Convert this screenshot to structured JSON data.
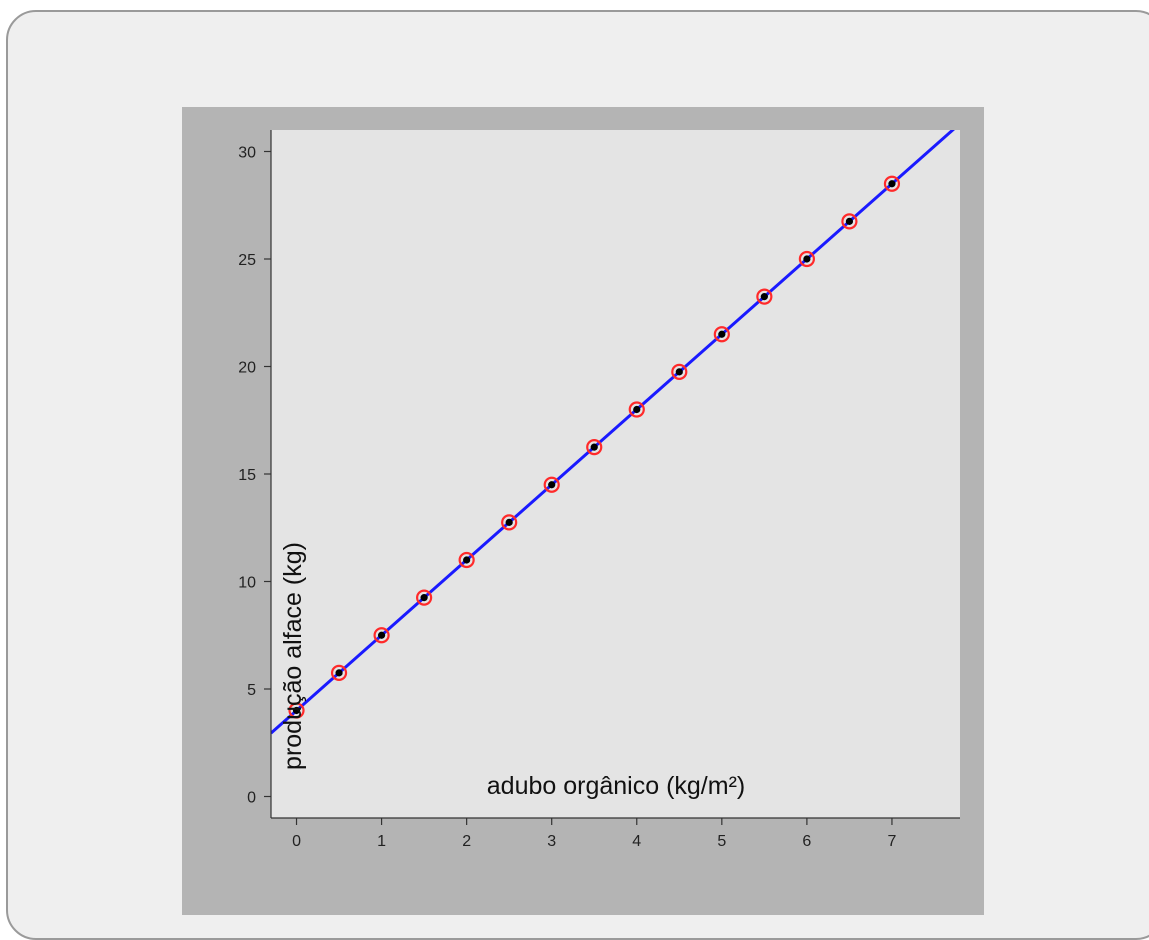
{
  "chart_data": {
    "type": "scatter",
    "title": "",
    "xlabel": "adubo orgânico (kg/m²)",
    "ylabel": "produção alface (kg)",
    "xlim": [
      -0.3,
      7.8
    ],
    "ylim": [
      -1,
      31
    ],
    "xticks": [
      0,
      1,
      2,
      3,
      4,
      5,
      6,
      7
    ],
    "yticks": [
      0,
      5,
      10,
      15,
      20,
      25,
      30
    ],
    "grid": false,
    "series": [
      {
        "type": "scatter",
        "marker": "black dot with red ring",
        "x": [
          0,
          0.5,
          1,
          1.5,
          2,
          2.5,
          3,
          3.5,
          4,
          4.5,
          5,
          5.5,
          6,
          6.5,
          7
        ],
        "y": [
          4.0,
          5.75,
          7.5,
          9.25,
          11.0,
          12.75,
          14.5,
          16.25,
          18.0,
          19.75,
          21.5,
          23.25,
          25.0,
          26.75,
          28.5
        ]
      },
      {
        "type": "line",
        "color": "#1a1aff",
        "slope": 3.5,
        "intercept": 4.0
      }
    ],
    "colors": {
      "axes_bg": "#e4e4e4",
      "figure_bg": "#b4b4b4",
      "line": "#1a1aff",
      "ring": "#ff2a2a",
      "dot": "#000000"
    }
  }
}
